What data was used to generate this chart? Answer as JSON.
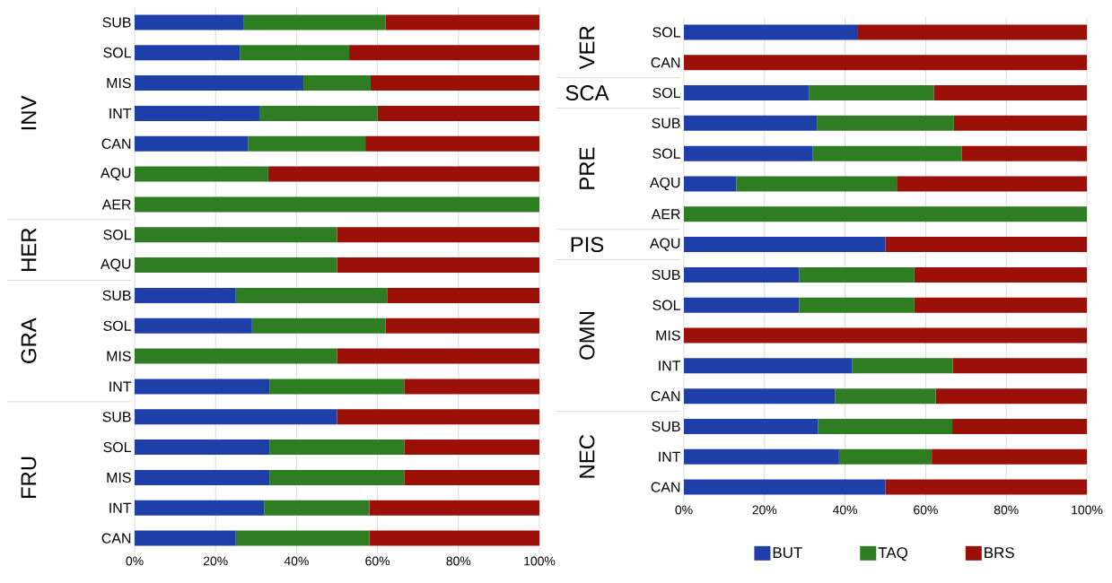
{
  "chart_data": [
    {
      "type": "bar",
      "orientation": "horizontal",
      "stacked": true,
      "grid": "x",
      "categories": [
        "SUB",
        "SOL",
        "MIS",
        "INT",
        "CAN",
        "AQU",
        "AER",
        "SOL",
        "AQU",
        "SUB",
        "SOL",
        "MIS",
        "INT",
        "SUB",
        "SOL",
        "MIS",
        "INT",
        "CAN"
      ],
      "annotations": [
        "INV",
        "HER",
        "GRA",
        "FRU"
      ],
      "xlim": [
        0,
        100
      ],
      "xticks": [
        {
          "value": 0,
          "label": "0%"
        },
        {
          "value": 20,
          "label": "20%"
        },
        {
          "value": 40,
          "label": "40%"
        },
        {
          "value": 60,
          "label": "60%"
        },
        {
          "value": 80,
          "label": "80%"
        },
        {
          "value": 100,
          "label": "100%"
        }
      ],
      "series": [
        {
          "color": "#1f3fa8",
          "values": [
            27,
            26,
            41.7,
            31,
            28,
            0,
            0,
            0,
            0,
            25,
            29,
            0,
            33.3,
            50,
            33.3,
            33.3,
            32,
            25
          ]
        },
        {
          "color": "#2e7d22",
          "values": [
            35,
            27,
            16.6,
            29,
            29,
            33,
            100,
            50,
            50,
            37.5,
            33,
            50,
            33.3,
            0,
            33.3,
            33.3,
            26,
            33
          ]
        },
        {
          "color": "#9b1109",
          "values": [
            38,
            47,
            41.7,
            40,
            43,
            67,
            0,
            50,
            50,
            37.5,
            38,
            50,
            33.4,
            50,
            33.4,
            33.4,
            42,
            42
          ]
        }
      ]
    },
    {
      "type": "bar",
      "orientation": "horizontal",
      "stacked": true,
      "grid": "x",
      "legend": "bottom",
      "categories": [
        "SOL",
        "CAN",
        "SOL",
        "SUB",
        "SOL",
        "AQU",
        "AER",
        "AQU",
        "SUB",
        "SOL",
        "MIS",
        "INT",
        "CAN",
        "SUB",
        "INT",
        "CAN"
      ],
      "annotations": [
        "VER",
        "SCA",
        "PRE",
        "PIS",
        "OMN",
        "NEC"
      ],
      "xlim": [
        0,
        100
      ],
      "xticks": [
        {
          "value": 0,
          "label": "0%"
        },
        {
          "value": 20,
          "label": "20%"
        },
        {
          "value": 40,
          "label": "40%"
        },
        {
          "value": 60,
          "label": "60%"
        },
        {
          "value": 80,
          "label": "80%"
        },
        {
          "value": 100,
          "label": "100%"
        }
      ],
      "series": [
        {
          "name": "BUT",
          "color": "#1f3fa8",
          "values": [
            43,
            0,
            31,
            33,
            32,
            13,
            0,
            50,
            28.6,
            28.6,
            0,
            41.7,
            37.5,
            33.3,
            38.5,
            50
          ]
        },
        {
          "name": "TAQ",
          "color": "#2e7d22",
          "values": [
            0,
            0,
            31,
            34,
            37,
            40,
            100,
            0,
            28.6,
            28.6,
            0,
            25,
            25,
            33.3,
            23,
            0
          ]
        },
        {
          "name": "BRS",
          "color": "#9b1109",
          "values": [
            57,
            100,
            38,
            33,
            31,
            47,
            0,
            50,
            42.8,
            42.8,
            100,
            33.3,
            37.5,
            33.4,
            38.5,
            50
          ]
        }
      ]
    }
  ]
}
